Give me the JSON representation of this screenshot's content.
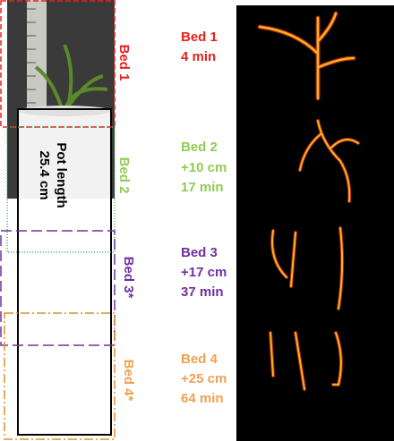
{
  "left_labels": [
    "Bed 1",
    "Bed 2",
    "Bed 3*",
    "Bed 4*"
  ],
  "pot_label": [
    "Pot length",
    "25.4 cm"
  ],
  "beds": [
    {
      "lines": [
        "Bed 1",
        "4 min"
      ]
    },
    {
      "lines": [
        "Bed 2",
        "+10 cm",
        "17 min"
      ]
    },
    {
      "lines": [
        "Bed 3",
        "+17 cm",
        "37 min"
      ]
    },
    {
      "lines": [
        "Bed 4",
        "+25 cm",
        "64 min"
      ]
    }
  ]
}
